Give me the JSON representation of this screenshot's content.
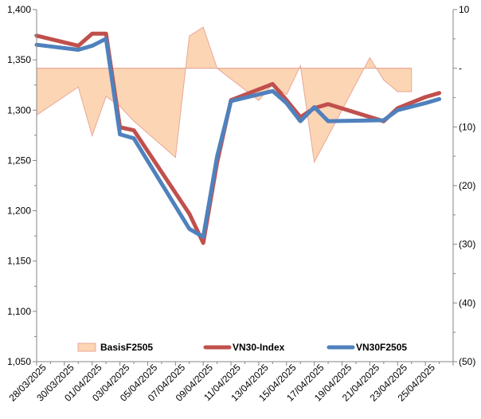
{
  "chart_data": {
    "type": "line",
    "title": "",
    "xlabel": "",
    "ylabel": "",
    "y2label": "",
    "grid": false,
    "legend_position": "bottom-inside",
    "categories": [
      "28/03/2025",
      "29/03/2025",
      "30/03/2025",
      "31/03/2025",
      "01/04/2025",
      "02/04/2025",
      "03/04/2025",
      "04/04/2025",
      "05/04/2025",
      "06/04/2025",
      "07/04/2025",
      "08/04/2025",
      "09/04/2025",
      "10/04/2025",
      "11/04/2025",
      "12/04/2025",
      "13/04/2025",
      "14/04/2025",
      "15/04/2025",
      "16/04/2025",
      "17/04/2025",
      "18/04/2025",
      "19/04/2025",
      "20/04/2025",
      "21/04/2025",
      "22/04/2025",
      "23/04/2025",
      "24/04/2025",
      "25/04/2025",
      "26/04/2025"
    ],
    "x_tick_labels": [
      "28/03/2025",
      "30/03/2025",
      "01/04/2025",
      "03/04/2025",
      "05/04/2025",
      "07/04/2025",
      "09/04/2025",
      "11/04/2025",
      "13/04/2025",
      "15/04/2025",
      "17/04/2025",
      "19/04/2025",
      "21/04/2025",
      "23/04/2025",
      "25/04/2025"
    ],
    "y_left": {
      "min": 1050,
      "max": 1400,
      "step": 50,
      "tick_labels": [
        "1,050",
        "1,100",
        "1,150",
        "1,200",
        "1,250",
        "1,300",
        "1,350",
        "1,400"
      ]
    },
    "y_right": {
      "min": -50,
      "max": 10,
      "step": 10,
      "tick_labels": [
        "(50)",
        "(40)",
        "(30)",
        "(20)",
        "(10)",
        "-",
        "10"
      ]
    },
    "series": [
      {
        "name": "BasisF2505",
        "kind": "area",
        "axis": "right",
        "color": "#fcd5b4",
        "edge_color": "#e8a898",
        "points": [
          {
            "x": 0,
            "y": -8
          },
          {
            "x": 3,
            "y": -3.2
          },
          {
            "x": 4,
            "y": -11.5
          },
          {
            "x": 5,
            "y": -4.8
          },
          {
            "x": 6,
            "y": -6.5
          },
          {
            "x": 7,
            "y": -9
          },
          {
            "x": 10,
            "y": -15.2
          },
          {
            "x": 11,
            "y": 5.5
          },
          {
            "x": 12,
            "y": 7
          },
          {
            "x": 13,
            "y": 0
          },
          {
            "x": 16,
            "y": -5.5
          },
          {
            "x": 17,
            "y": -2.7
          },
          {
            "x": 18,
            "y": -4.5
          },
          {
            "x": 19,
            "y": 0.4
          },
          {
            "x": 20,
            "y": -16
          },
          {
            "x": 24,
            "y": 1.8
          },
          {
            "x": 25,
            "y": -2
          },
          {
            "x": 26,
            "y": -4
          },
          {
            "x": 27,
            "y": -4
          },
          {
            "x": 27,
            "y": 0
          }
        ]
      },
      {
        "name": "VN30-Index",
        "kind": "line",
        "axis": "left",
        "color": "#c0504d",
        "points": [
          {
            "x": 0,
            "y": 1374
          },
          {
            "x": 3,
            "y": 1364
          },
          {
            "x": 4,
            "y": 1376
          },
          {
            "x": 5,
            "y": 1376
          },
          {
            "x": 6,
            "y": 1283
          },
          {
            "x": 7,
            "y": 1280
          },
          {
            "x": 11,
            "y": 1197
          },
          {
            "x": 12,
            "y": 1168
          },
          {
            "x": 13,
            "y": 1248
          },
          {
            "x": 14,
            "y": 1310
          },
          {
            "x": 17,
            "y": 1326
          },
          {
            "x": 18,
            "y": 1310
          },
          {
            "x": 19,
            "y": 1293
          },
          {
            "x": 20,
            "y": 1302
          },
          {
            "x": 21,
            "y": 1306
          },
          {
            "x": 25,
            "y": 1289
          },
          {
            "x": 26,
            "y": 1302
          },
          {
            "x": 28,
            "y": 1313
          },
          {
            "x": 29,
            "y": 1317
          }
        ]
      },
      {
        "name": "VN30F2505",
        "kind": "line",
        "axis": "left",
        "color": "#4f81bd",
        "points": [
          {
            "x": 0,
            "y": 1365
          },
          {
            "x": 3,
            "y": 1360
          },
          {
            "x": 4,
            "y": 1364
          },
          {
            "x": 5,
            "y": 1371
          },
          {
            "x": 6,
            "y": 1276
          },
          {
            "x": 7,
            "y": 1272
          },
          {
            "x": 11,
            "y": 1182
          },
          {
            "x": 12,
            "y": 1174
          },
          {
            "x": 13,
            "y": 1254
          },
          {
            "x": 14,
            "y": 1309
          },
          {
            "x": 17,
            "y": 1319
          },
          {
            "x": 18,
            "y": 1307
          },
          {
            "x": 19,
            "y": 1289
          },
          {
            "x": 20,
            "y": 1303
          },
          {
            "x": 21,
            "y": 1289
          },
          {
            "x": 25,
            "y": 1290
          },
          {
            "x": 26,
            "y": 1300
          },
          {
            "x": 28,
            "y": 1307
          },
          {
            "x": 29,
            "y": 1311
          }
        ]
      }
    ]
  }
}
